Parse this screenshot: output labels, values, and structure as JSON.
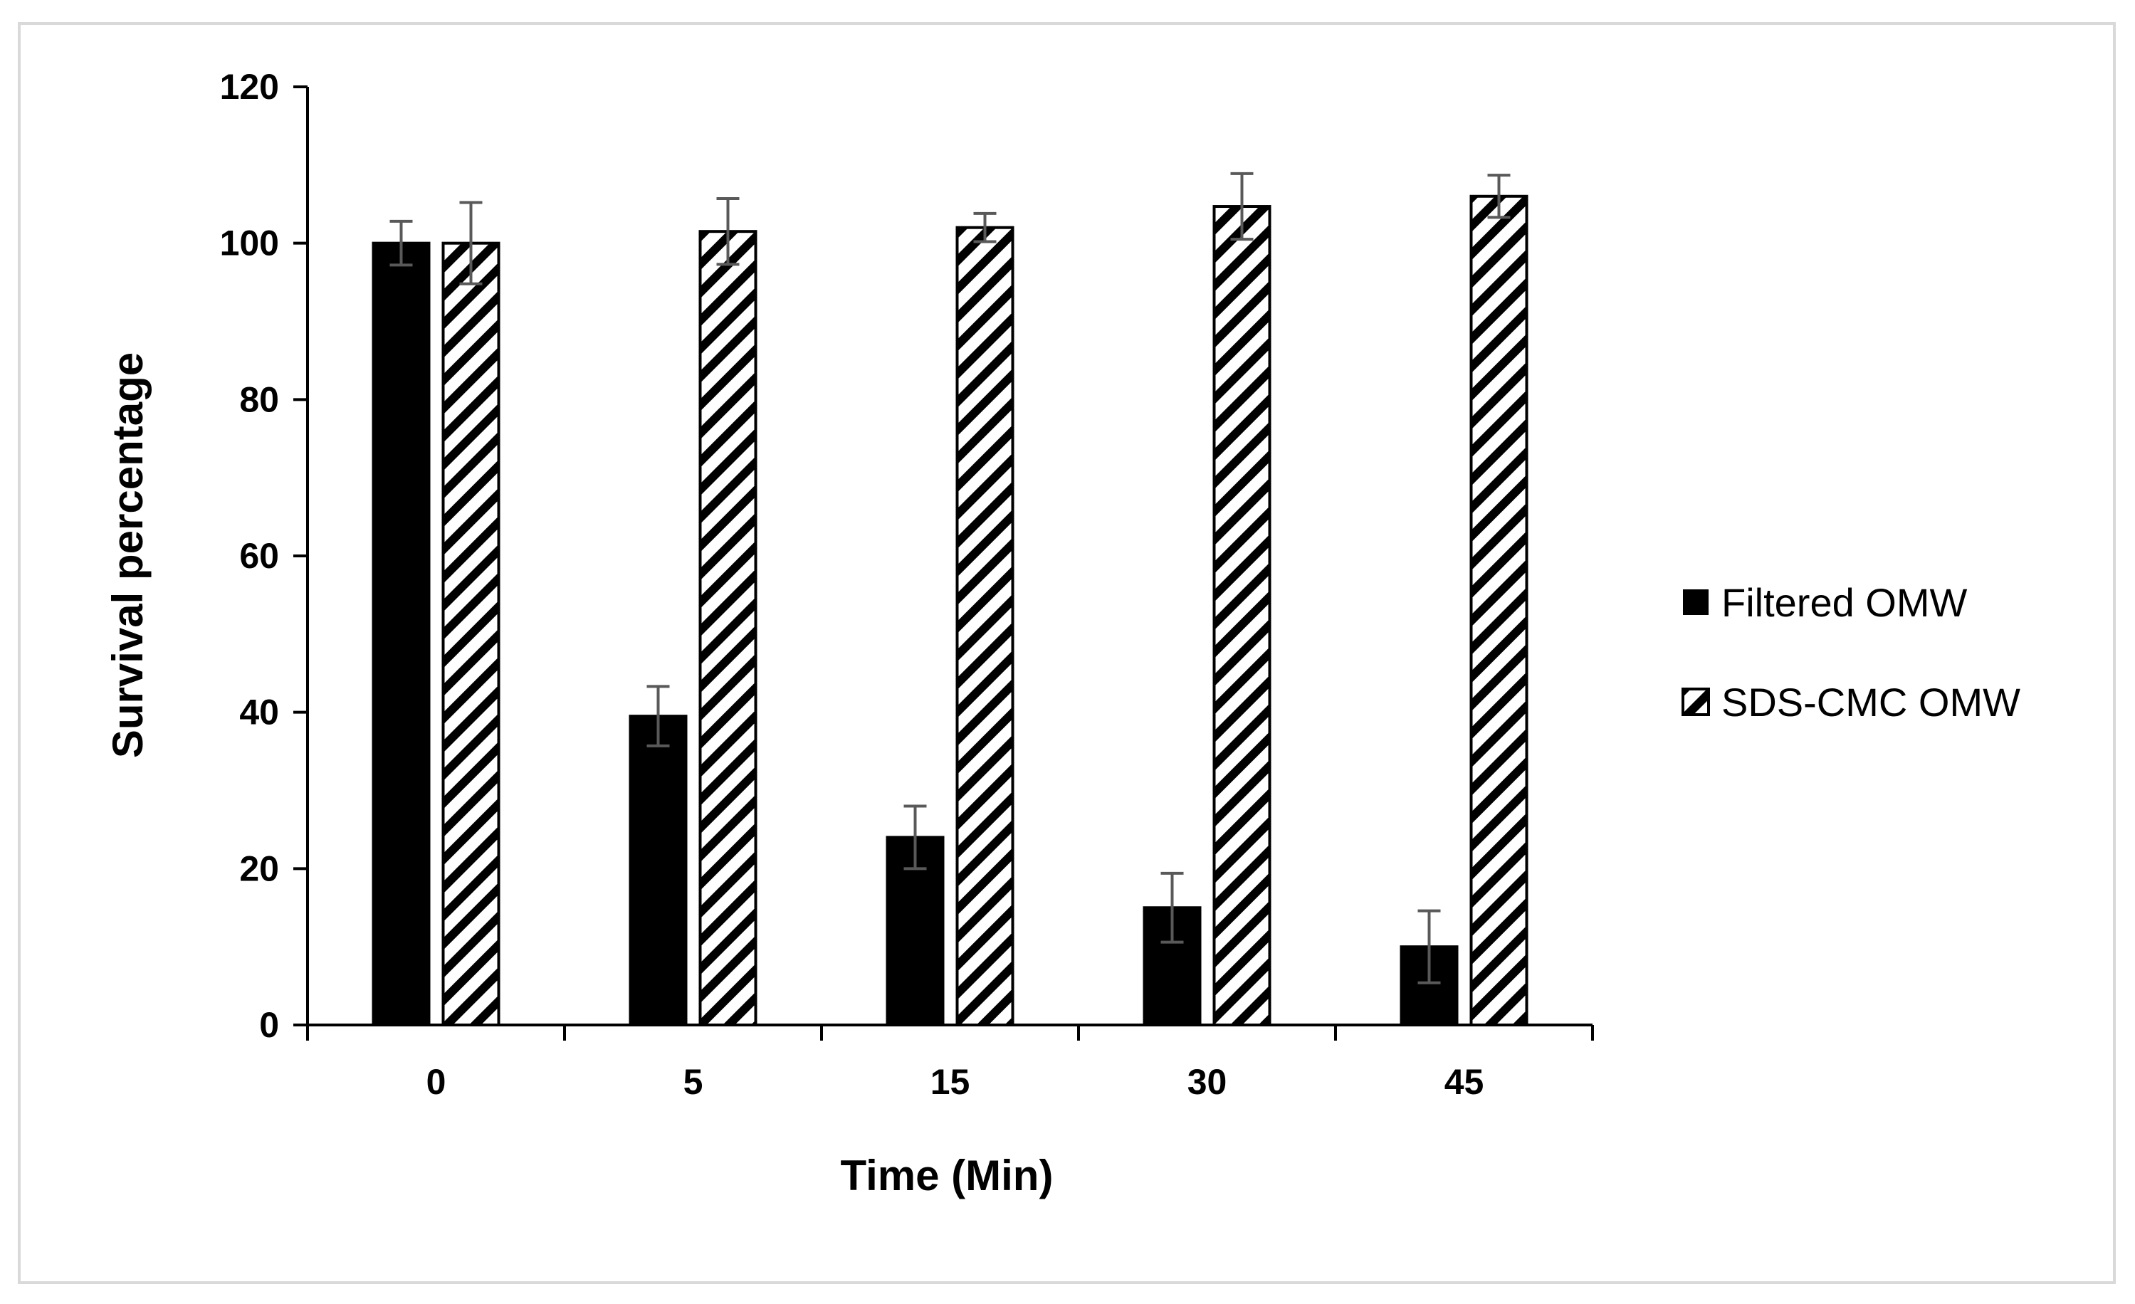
{
  "chart_data": {
    "type": "bar",
    "title": "",
    "xlabel": "Time (Min)",
    "ylabel": "Survival percentage",
    "categories": [
      "0",
      "5",
      "15",
      "30",
      "45"
    ],
    "ylim": [
      0,
      120
    ],
    "yticks": [
      0,
      20,
      40,
      60,
      80,
      100,
      120
    ],
    "grid": false,
    "legend_position": "right",
    "series": [
      {
        "name": "Filtered OMW",
        "fill": "solid",
        "color": "#000000",
        "values": [
          100,
          39.5,
          24,
          15,
          10
        ],
        "errors": [
          2.8,
          3.8,
          4,
          4.4,
          4.6
        ]
      },
      {
        "name": "SDS-CMC OMW",
        "fill": "diagonal-hatch",
        "color": "#000000",
        "values": [
          100,
          101.5,
          102,
          104.7,
          106
        ],
        "errors": [
          5.2,
          4.2,
          1.8,
          4.2,
          2.7
        ]
      }
    ]
  }
}
